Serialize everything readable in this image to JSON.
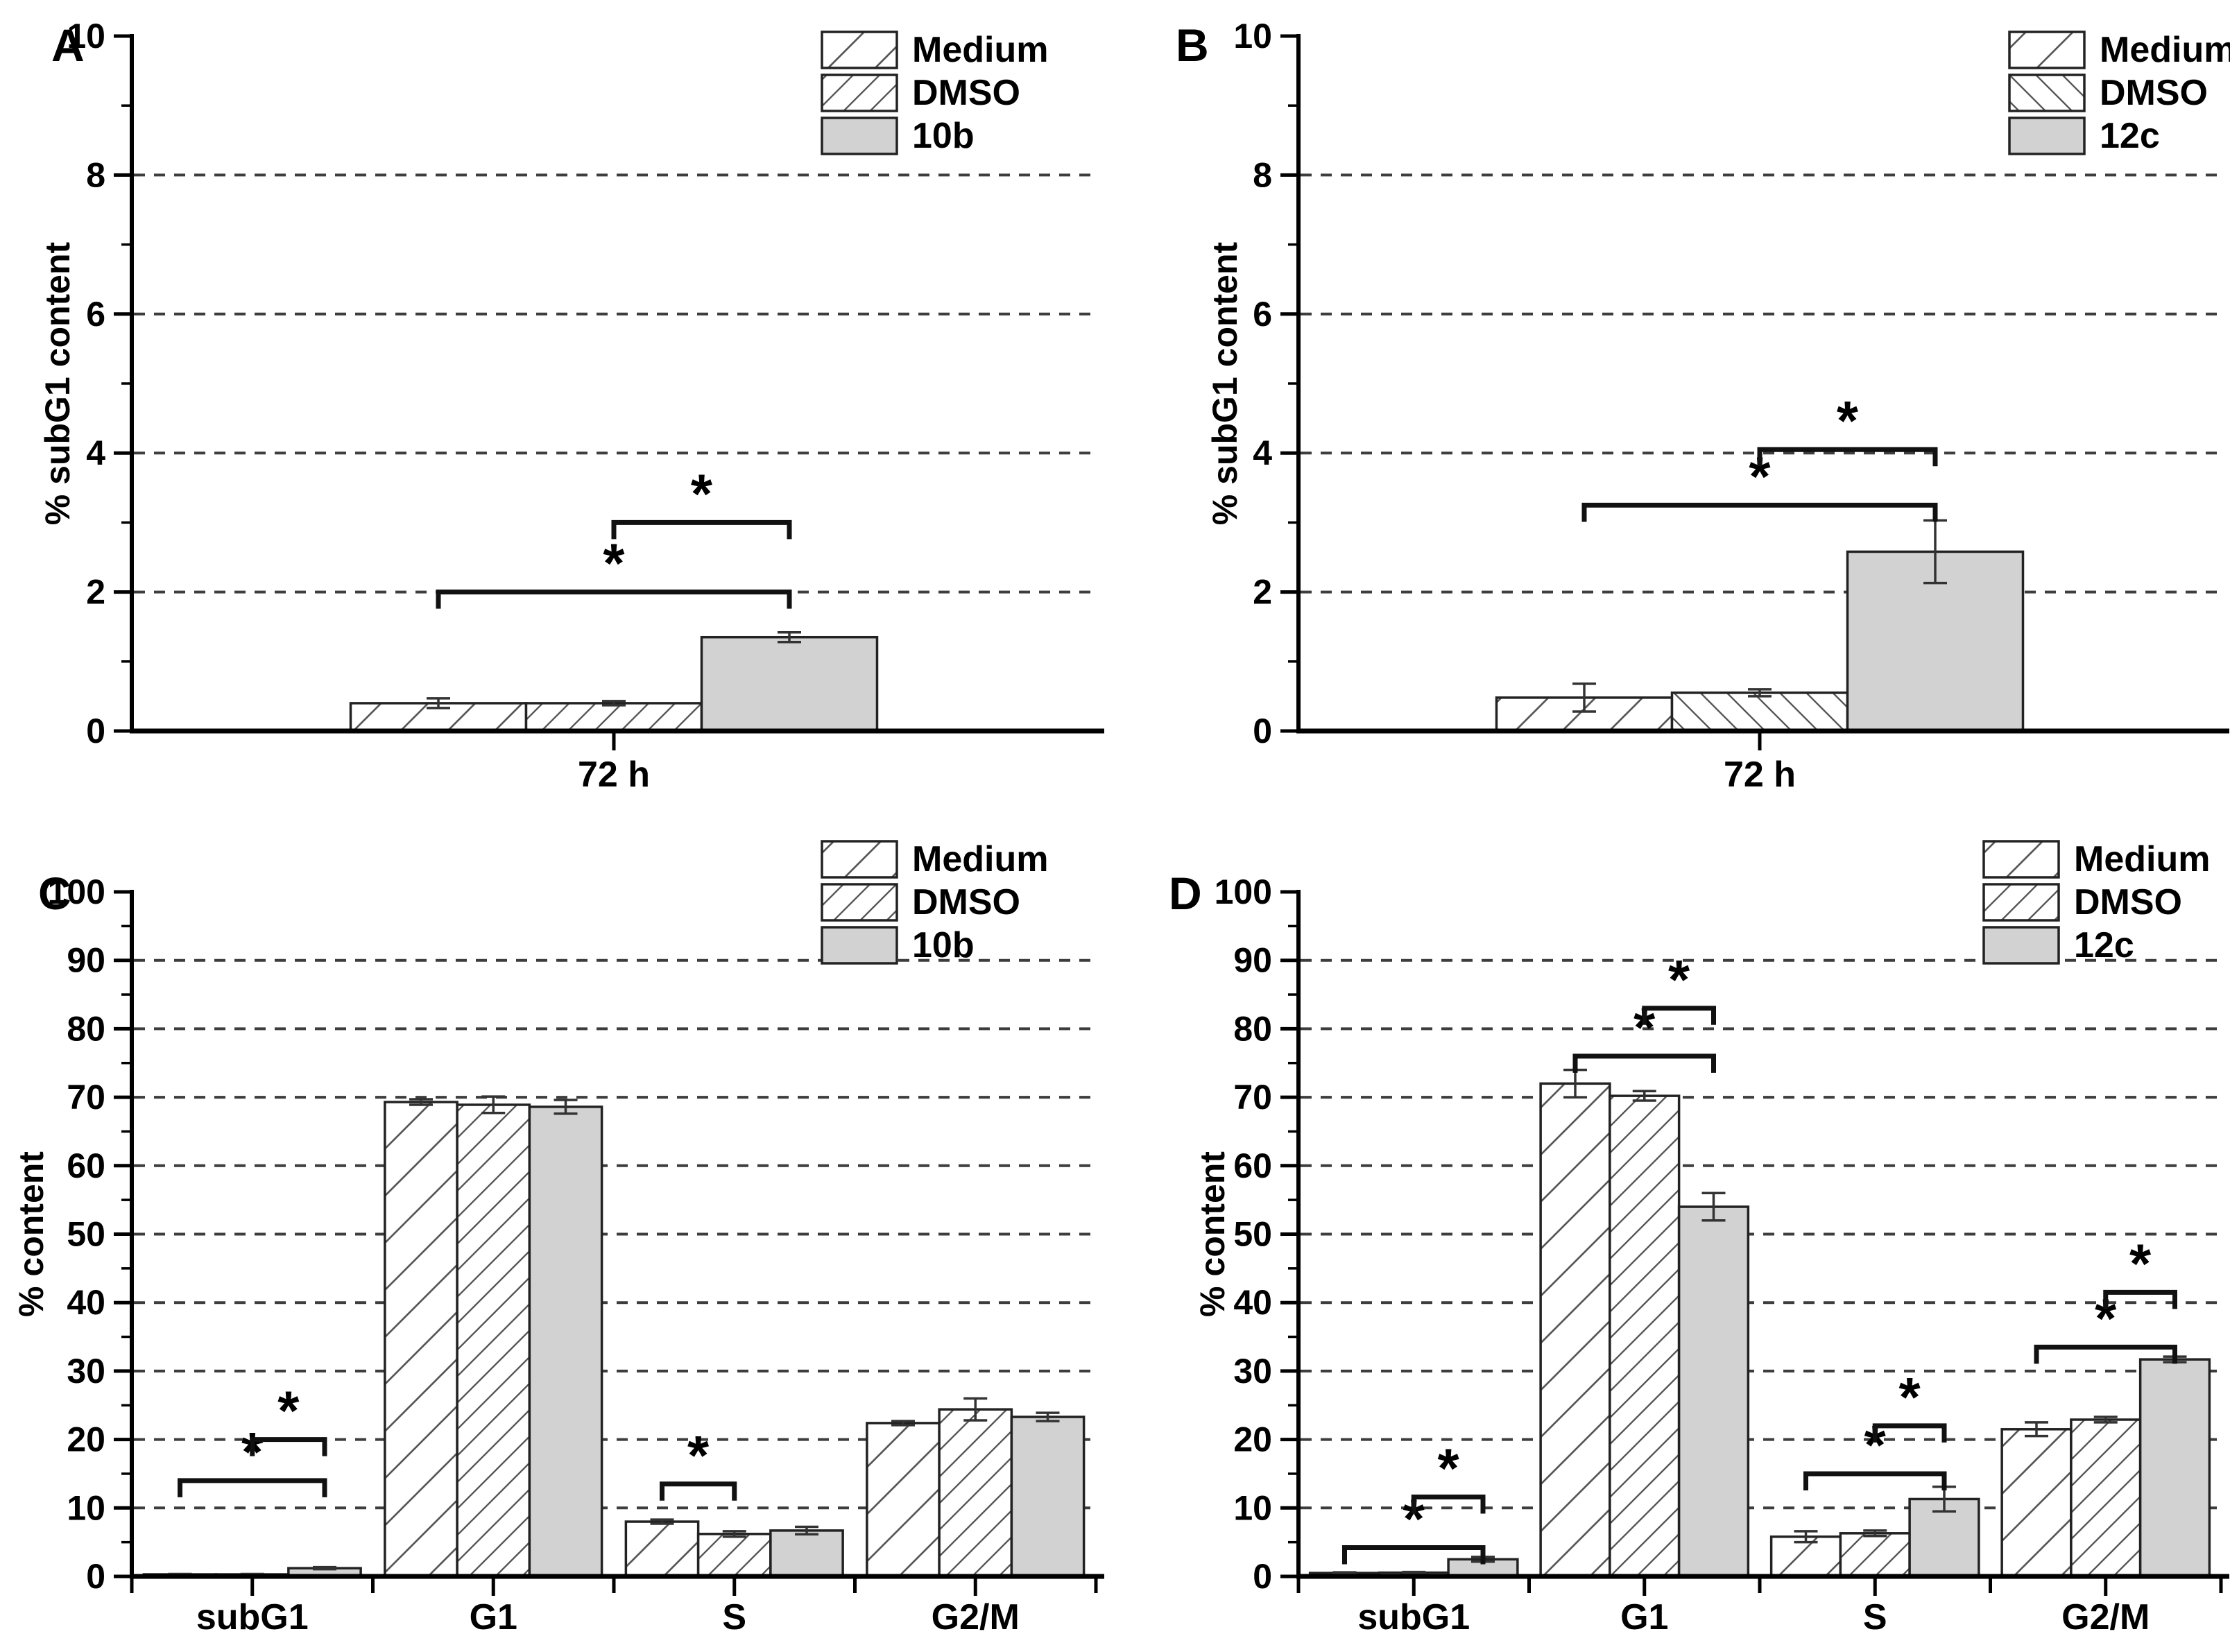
{
  "figure": {
    "background": "#ffffff",
    "type": "grouped-bar-figure",
    "panels_order": [
      "A",
      "B",
      "C",
      "D"
    ]
  },
  "colors": {
    "bar_gray_fill": "#d2d2d2",
    "bar_stroke": "#222222",
    "hatch_line": "#4f4f4f",
    "axis": "#000000",
    "gridline": "#3d3d3d",
    "error_bar": "#333333",
    "bracket": "#111111",
    "text": "#000000"
  },
  "chart_data": [
    {
      "id": "A",
      "type": "bar",
      "panel_label": "A",
      "title": "",
      "xlabel": "",
      "ylabel": "% subG1 content",
      "ylim": [
        0,
        10
      ],
      "ytick_step": 2,
      "yminor_step": 1,
      "grid": "dashed-horizontal",
      "legend_position": "inside-top-right",
      "categories": [
        "72 h"
      ],
      "series": [
        {
          "name": "Medium",
          "fill": "hatch-forward-sparse",
          "values": [
            0.4
          ],
          "errors": [
            0.07
          ]
        },
        {
          "name": "DMSO",
          "fill": "hatch-forward-dense",
          "values": [
            0.4
          ],
          "errors": [
            0.03
          ]
        },
        {
          "name": "10b",
          "fill": "solid-gray",
          "values": [
            1.35
          ],
          "errors": [
            0.07
          ]
        }
      ],
      "significance_brackets": [
        {
          "category": 0,
          "from_series": 0,
          "to_series": 2,
          "y": 2.0,
          "label": "*"
        },
        {
          "category": 0,
          "from_series": 1,
          "to_series": 2,
          "y": 3.0,
          "label": "*"
        }
      ]
    },
    {
      "id": "B",
      "type": "bar",
      "panel_label": "B",
      "title": "",
      "xlabel": "",
      "ylabel": "% subG1 content",
      "ylim": [
        0,
        10
      ],
      "ytick_step": 2,
      "yminor_step": 1,
      "grid": "dashed-horizontal",
      "legend_position": "inside-top-right",
      "categories": [
        "72 h"
      ],
      "series": [
        {
          "name": "Medium",
          "fill": "hatch-forward-sparse",
          "values": [
            0.48
          ],
          "errors": [
            0.2
          ]
        },
        {
          "name": "DMSO",
          "fill": "hatch-back-dense",
          "values": [
            0.55
          ],
          "errors": [
            0.05
          ]
        },
        {
          "name": "12c",
          "fill": "solid-gray",
          "values": [
            2.58
          ],
          "errors": [
            0.45
          ]
        }
      ],
      "significance_brackets": [
        {
          "category": 0,
          "from_series": 0,
          "to_series": 2,
          "y": 3.25,
          "label": "*"
        },
        {
          "category": 0,
          "from_series": 1,
          "to_series": 2,
          "y": 4.05,
          "label": "*"
        }
      ]
    },
    {
      "id": "C",
      "type": "bar",
      "panel_label": "C",
      "title": "",
      "xlabel": "",
      "ylabel": "% content",
      "ylim": [
        0,
        100
      ],
      "ytick_step": 10,
      "yminor_step": 5,
      "grid": "dashed-horizontal",
      "legend_position": "above-top-right",
      "categories": [
        "subG1",
        "G1",
        "S",
        "G2/M"
      ],
      "series": [
        {
          "name": "Medium",
          "fill": "hatch-forward-sparse",
          "values": [
            0.3,
            69.3,
            8.0,
            22.4
          ],
          "errors": [
            0.05,
            0.4,
            0.3,
            0.3
          ]
        },
        {
          "name": "DMSO",
          "fill": "hatch-forward-dense",
          "values": [
            0.3,
            68.9,
            6.2,
            24.4
          ],
          "errors": [
            0.05,
            1.2,
            0.4,
            1.6
          ]
        },
        {
          "name": "10b",
          "fill": "solid-gray",
          "values": [
            1.2,
            68.6,
            6.7,
            23.3
          ],
          "errors": [
            0.15,
            1.0,
            0.55,
            0.6
          ]
        }
      ],
      "significance_brackets": [
        {
          "category": 0,
          "from_series": 0,
          "to_series": 2,
          "y": 14.0,
          "label": "*"
        },
        {
          "category": 0,
          "from_series": 1,
          "to_series": 2,
          "y": 20.0,
          "label": "*"
        },
        {
          "category": 2,
          "from_series": 0,
          "to_series": 1,
          "y": 13.5,
          "label": "*"
        }
      ]
    },
    {
      "id": "D",
      "type": "bar",
      "panel_label": "D",
      "title": "",
      "xlabel": "",
      "ylabel": "% content",
      "ylim": [
        0,
        100
      ],
      "ytick_step": 10,
      "yminor_step": 5,
      "grid": "dashed-horizontal",
      "legend_position": "above-top-right",
      "categories": [
        "subG1",
        "G1",
        "S",
        "G2/M"
      ],
      "series": [
        {
          "name": "Medium",
          "fill": "hatch-forward-sparse",
          "values": [
            0.5,
            72.0,
            5.8,
            21.5
          ],
          "errors": [
            0.1,
            2.0,
            0.8,
            1.0
          ]
        },
        {
          "name": "DMSO",
          "fill": "hatch-forward-dense",
          "values": [
            0.55,
            70.2,
            6.3,
            22.9
          ],
          "errors": [
            0.1,
            0.7,
            0.4,
            0.4
          ]
        },
        {
          "name": "12c",
          "fill": "solid-gray",
          "values": [
            2.5,
            54.0,
            11.3,
            31.7
          ],
          "errors": [
            0.35,
            2.0,
            1.8,
            0.4
          ]
        }
      ],
      "significance_brackets": [
        {
          "category": 0,
          "from_series": 0,
          "to_series": 2,
          "y": 4.2,
          "label": "*"
        },
        {
          "category": 0,
          "from_series": 1,
          "to_series": 2,
          "y": 11.6,
          "label": "*"
        },
        {
          "category": 1,
          "from_series": 0,
          "to_series": 2,
          "y": 76.0,
          "label": "*"
        },
        {
          "category": 1,
          "from_series": 1,
          "to_series": 2,
          "y": 83.0,
          "label": "*"
        },
        {
          "category": 2,
          "from_series": 0,
          "to_series": 2,
          "y": 15.0,
          "label": "*"
        },
        {
          "category": 2,
          "from_series": 1,
          "to_series": 2,
          "y": 22.0,
          "label": "*"
        },
        {
          "category": 3,
          "from_series": 0,
          "to_series": 2,
          "y": 33.5,
          "label": "*"
        },
        {
          "category": 3,
          "from_series": 1,
          "to_series": 2,
          "y": 41.5,
          "label": "*"
        }
      ]
    }
  ]
}
